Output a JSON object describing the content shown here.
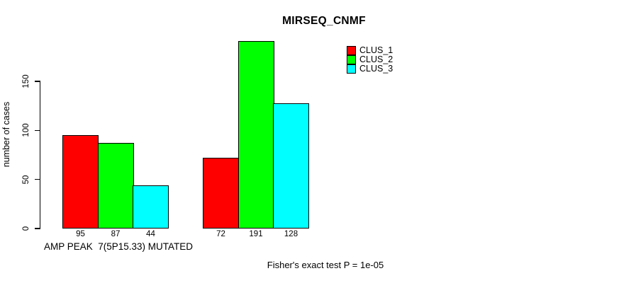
{
  "title": "MIRSEQ_CNMF",
  "y_axis": {
    "label": "number of cases",
    "ticks": [
      "0",
      "50",
      "100",
      "150"
    ]
  },
  "x_axis": {
    "group_label": "AMP PEAK  7(5P15.33) MUTATED"
  },
  "footer": "Fisher's exact test P = 1e-05",
  "legend": {
    "items": [
      {
        "label": "CLUS_1",
        "color": "#ff0000"
      },
      {
        "label": "CLUS_2",
        "color": "#00ff00"
      },
      {
        "label": "CLUS_3",
        "color": "#00ffff"
      }
    ]
  },
  "chart_data": {
    "type": "bar",
    "title": "MIRSEQ_CNMF",
    "ylabel": "number of cases",
    "xlabel": "AMP PEAK  7(5P15.33) MUTATED",
    "categories": [
      "AMP PEAK  7(5P15.33) MUTATED",
      ""
    ],
    "series": [
      {
        "name": "CLUS_1",
        "color": "#ff0000",
        "values": [
          95,
          72
        ]
      },
      {
        "name": "CLUS_2",
        "color": "#00ff00",
        "values": [
          87,
          191
        ]
      },
      {
        "name": "CLUS_3",
        "color": "#00ffff",
        "values": [
          44,
          128
        ]
      }
    ],
    "bar_value_labels": [
      [
        95,
        87,
        44
      ],
      [
        72,
        191,
        128
      ]
    ],
    "ylim": [
      0,
      150
    ],
    "yticks": [
      0,
      50,
      100,
      150
    ],
    "grid": false,
    "legend_position": "top-right",
    "annotation": "Fisher's exact test P = 1e-05"
  }
}
